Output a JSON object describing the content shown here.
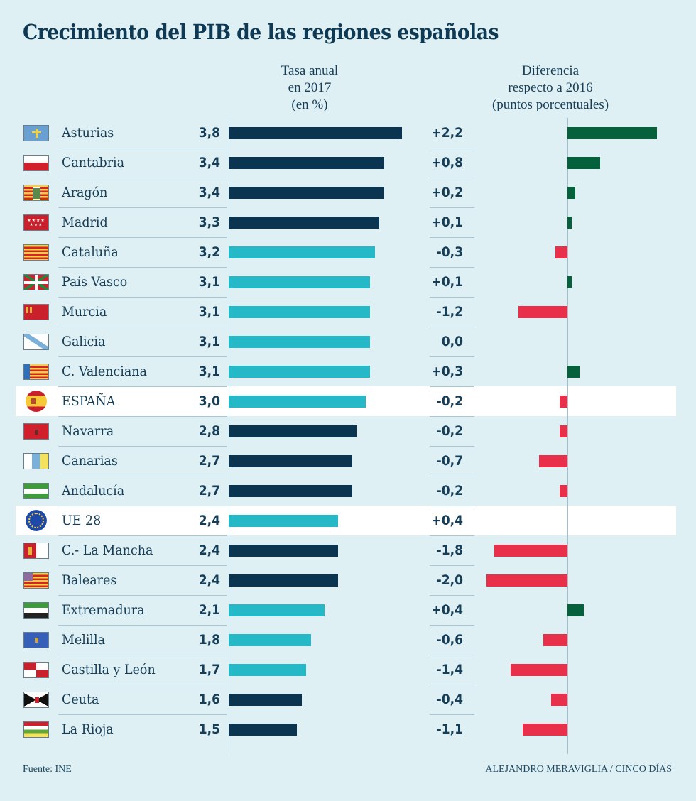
{
  "title": "Crecimiento del PIB de las regiones españolas",
  "headers": {
    "annual": [
      "Tasa anual",
      "en 2017",
      "(en %)"
    ],
    "diff": [
      "Diferencia",
      "respecto a 2016",
      "(puntos porcentuales)"
    ]
  },
  "colors": {
    "background": "#dff0f4",
    "highlight_row": "#ffffff",
    "bar_dark": "#0b3450",
    "bar_light": "#25b8c6",
    "diff_positive": "#04613b",
    "diff_negative": "#e8304a",
    "text": "#163e58"
  },
  "footer": {
    "source": "Fuente: INE",
    "credit": "ALEJANDRO MERAVIGLIA / CINCO DÍAS"
  },
  "chart_data": {
    "type": "bar",
    "title": "Crecimiento del PIB de las regiones españolas",
    "categories": [
      "Asturias",
      "Cantabria",
      "Aragón",
      "Madrid",
      "Cataluña",
      "País Vasco",
      "Murcia",
      "Galicia",
      "C. Valenciana",
      "ESPAÑA",
      "Navarra",
      "Canarias",
      "Andalucía",
      "UE 28",
      "C.- La Mancha",
      "Baleares",
      "Extremadura",
      "Melilla",
      "Castilla y León",
      "Ceuta",
      "La Rioja"
    ],
    "flags": [
      "asturias-flag-icon",
      "cantabria-flag-icon",
      "aragon-flag-icon",
      "madrid-flag-icon",
      "cataluna-flag-icon",
      "pais-vasco-flag-icon",
      "murcia-flag-icon",
      "galicia-flag-icon",
      "valenciana-flag-icon",
      "spain-flag-icon",
      "navarra-flag-icon",
      "canarias-flag-icon",
      "andalucia-flag-icon",
      "eu-flag-icon",
      "castilla-la-mancha-flag-icon",
      "baleares-flag-icon",
      "extremadura-flag-icon",
      "melilla-flag-icon",
      "castilla-y-leon-flag-icon",
      "ceuta-flag-icon",
      "la-rioja-flag-icon"
    ],
    "highlighted": [
      "ESPAÑA",
      "UE 28"
    ],
    "series": [
      {
        "name": "Tasa anual en 2017 (en %)",
        "values": [
          3.8,
          3.4,
          3.4,
          3.3,
          3.2,
          3.1,
          3.1,
          3.1,
          3.1,
          3.0,
          2.8,
          2.7,
          2.7,
          2.4,
          2.4,
          2.4,
          2.1,
          1.8,
          1.7,
          1.6,
          1.5
        ],
        "labels": [
          "3,8",
          "3,4",
          "3,4",
          "3,3",
          "3,2",
          "3,1",
          "3,1",
          "3,1",
          "3,1",
          "3,0",
          "2,8",
          "2,7",
          "2,7",
          "2,4",
          "2,4",
          "2,4",
          "2,1",
          "1,8",
          "1,7",
          "1,6",
          "1,5"
        ],
        "bar_shade": [
          "dark",
          "dark",
          "dark",
          "dark",
          "light",
          "light",
          "light",
          "light",
          "light",
          "light",
          "dark",
          "dark",
          "dark",
          "light",
          "dark",
          "dark",
          "light",
          "light",
          "light",
          "dark",
          "dark"
        ]
      },
      {
        "name": "Diferencia respecto a 2016 (puntos porcentuales)",
        "values": [
          2.2,
          0.8,
          0.2,
          0.1,
          -0.3,
          0.1,
          -1.2,
          0.0,
          0.3,
          -0.2,
          -0.2,
          -0.7,
          -0.2,
          0.4,
          -1.8,
          -2.0,
          0.4,
          -0.6,
          -1.4,
          -0.4,
          -1.1
        ],
        "labels": [
          "+2,2",
          "+0,8",
          "+0,2",
          "+0,1",
          "-0,3",
          "+0,1",
          "-1,2",
          "0,0",
          "+0,3",
          "-0,2",
          "-0,2",
          "-0,7",
          "-0,2",
          "+0,4",
          "-1,8",
          "-2,0",
          "+0,4",
          "-0,6",
          "-1,4",
          "-0,4",
          "-1,1"
        ],
        "bar_drawn": [
          true,
          true,
          true,
          true,
          true,
          true,
          true,
          false,
          true,
          true,
          true,
          true,
          true,
          false,
          true,
          true,
          true,
          true,
          true,
          true,
          true
        ]
      }
    ],
    "xlim_annual": [
      0,
      3.8
    ],
    "xlim_diff": [
      -2.0,
      2.2
    ],
    "grid": false,
    "legend": "none"
  }
}
